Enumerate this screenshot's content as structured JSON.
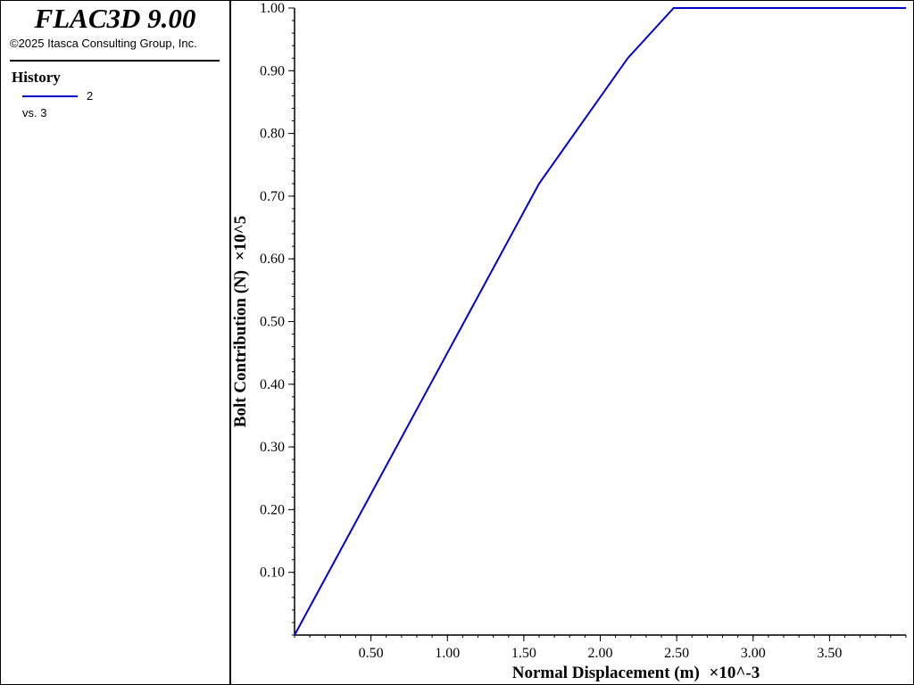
{
  "app": {
    "title": "FLAC3D 9.00",
    "copyright": "©2025 Itasca Consulting Group, Inc."
  },
  "legend": {
    "heading": "History",
    "series_id": "2",
    "versus": "vs. 3",
    "line_color": "#0000cc"
  },
  "chart_data": {
    "type": "line",
    "xlabel": "Normal Displacement (m)",
    "xscale_label": "×10^-3",
    "ylabel": "Bolt Contribution (N)",
    "yscale_label": "×10^5",
    "xlim": [
      0,
      4.0
    ],
    "ylim": [
      0,
      1.0
    ],
    "xticks": [
      0.5,
      1.0,
      1.5,
      2.0,
      2.5,
      3.0,
      3.5
    ],
    "xtick_labels": [
      "0.50",
      "1.00",
      "1.50",
      "2.00",
      "2.50",
      "3.00",
      "3.50"
    ],
    "yticks": [
      0.1,
      0.2,
      0.3,
      0.4,
      0.5,
      0.6,
      0.7,
      0.8,
      0.9,
      1.0
    ],
    "ytick_labels": [
      "0.10",
      "0.20",
      "0.30",
      "0.40",
      "0.50",
      "0.60",
      "0.70",
      "0.80",
      "0.90",
      "1.00"
    ],
    "series": [
      {
        "color": "#0000cc",
        "x": [
          0.0,
          1.6,
          2.18,
          2.48,
          4.0
        ],
        "y": [
          0.0,
          0.72,
          0.92,
          1.0,
          1.0
        ]
      }
    ],
    "grid": false
  }
}
